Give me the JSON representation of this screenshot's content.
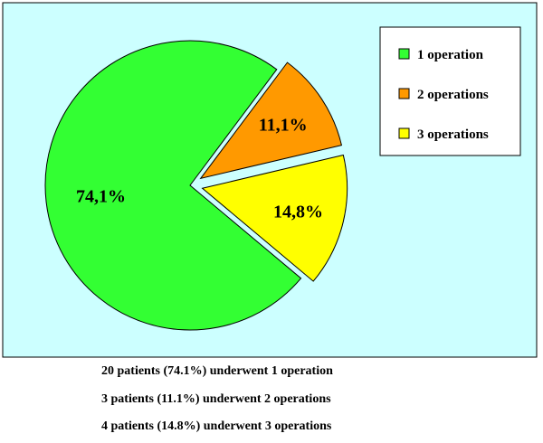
{
  "chart_data": {
    "type": "pie",
    "slices": [
      {
        "label": "1 operation",
        "value": 74.1,
        "value_label": "74,1%",
        "color": "#33ff33"
      },
      {
        "label": "2 operations",
        "value": 11.1,
        "value_label": "11,1%",
        "color": "#ff9900"
      },
      {
        "label": "3 operations",
        "value": 14.8,
        "value_label": "14,8%",
        "color": "#ffff00"
      }
    ],
    "legend_position": "top-right",
    "background_color": "#ccffff",
    "exploded": true
  },
  "captions": [
    "20 patients (74.1%) underwent 1 operation",
    "3 patients (11.1%) underwent 2 operations",
    "4 patients (14.8%) underwent 3 operations"
  ]
}
